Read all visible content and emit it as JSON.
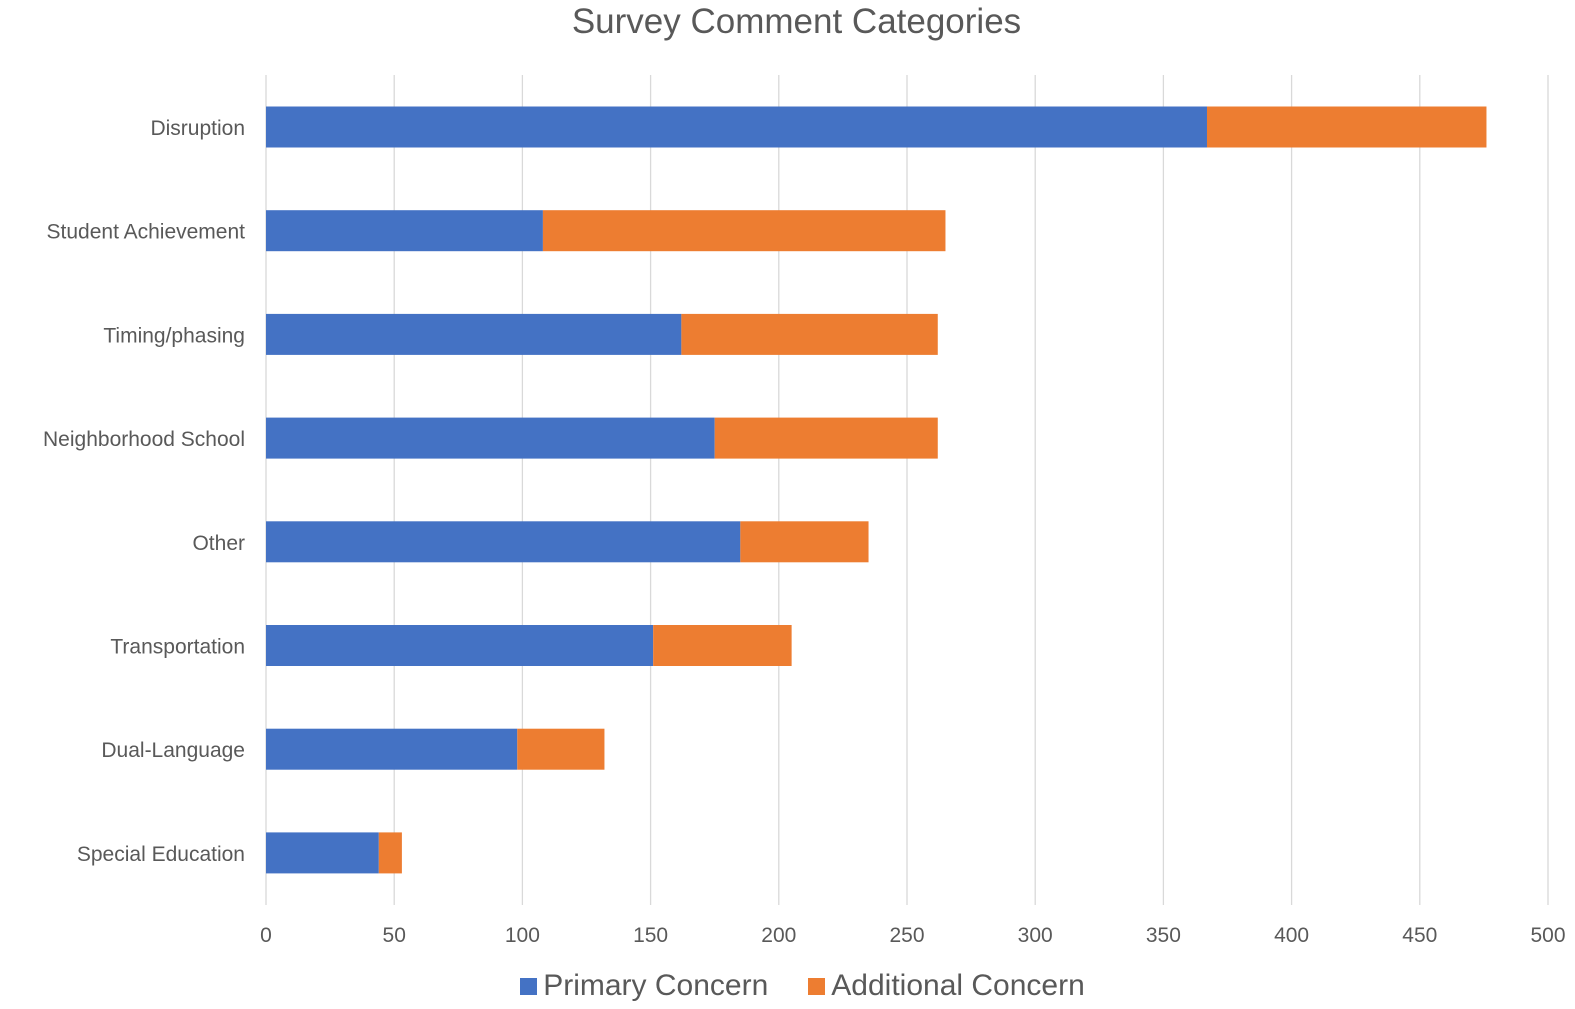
{
  "chart_data": {
    "type": "bar",
    "orientation": "horizontal",
    "stacked": true,
    "title": "Survey Comment Categories",
    "xlabel": "",
    "ylabel": "",
    "xlim": [
      0,
      500
    ],
    "x_ticks": [
      0,
      50,
      100,
      150,
      200,
      250,
      300,
      350,
      400,
      450,
      500
    ],
    "grid": "vertical",
    "legend_position": "bottom",
    "categories": [
      "Disruption",
      "Student Achievement",
      "Timing/phasing",
      "Neighborhood School",
      "Other",
      "Transportation",
      "Dual-Language",
      "Special Education"
    ],
    "series": [
      {
        "name": "Primary Concern",
        "color": "#4472C4",
        "values": [
          367,
          108,
          162,
          175,
          185,
          151,
          98,
          44
        ]
      },
      {
        "name": "Additional Concern",
        "color": "#ED7D31",
        "values": [
          109,
          157,
          100,
          87,
          50,
          54,
          34,
          9
        ]
      }
    ]
  }
}
